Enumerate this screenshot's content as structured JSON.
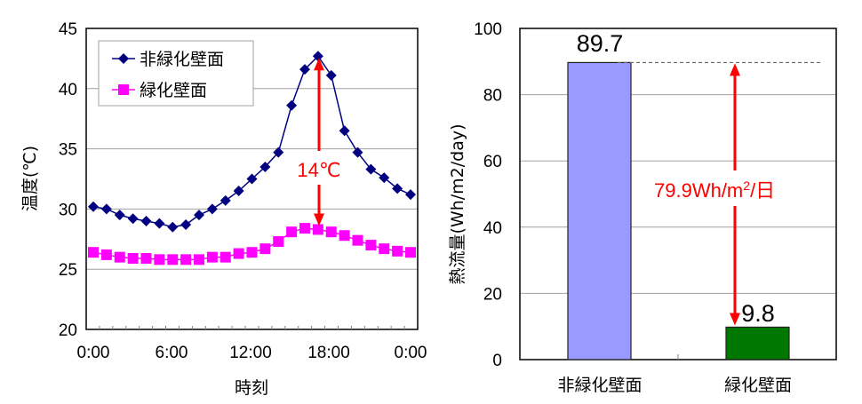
{
  "chart_data": [
    {
      "type": "line",
      "title": "",
      "xlabel": "時刻",
      "ylabel": "温度(℃)",
      "ylim": [
        20,
        45
      ],
      "yticks": [
        20,
        25,
        30,
        35,
        40,
        45
      ],
      "xtick_labels": [
        "0:00",
        "6:00",
        "12:00",
        "18:00",
        "0:00"
      ],
      "grid": "horizontal",
      "legend_position": "upper-left",
      "x": [
        "0:00",
        "1:00",
        "2:00",
        "3:00",
        "4:00",
        "5:00",
        "6:00",
        "7:00",
        "8:00",
        "9:00",
        "10:00",
        "11:00",
        "12:00",
        "13:00",
        "14:00",
        "15:00",
        "16:00",
        "17:00",
        "18:00",
        "19:00",
        "20:00",
        "21:00",
        "22:00",
        "23:00",
        "0:00"
      ],
      "series": [
        {
          "name": "非緑化壁面",
          "color": "#000080",
          "marker": "diamond",
          "values": [
            30.2,
            30.0,
            29.5,
            29.2,
            29.0,
            28.8,
            28.5,
            28.7,
            29.5,
            30.0,
            30.7,
            31.5,
            32.5,
            33.5,
            34.7,
            38.6,
            41.6,
            42.7,
            41.1,
            36.5,
            34.7,
            33.3,
            32.6,
            31.7,
            31.2
          ]
        },
        {
          "name": "緑化壁面",
          "color": "#ff00ff",
          "marker": "square",
          "values": [
            26.4,
            26.2,
            26.0,
            25.9,
            25.9,
            25.8,
            25.8,
            25.8,
            25.8,
            26.0,
            26.0,
            26.3,
            26.4,
            26.7,
            27.3,
            28.1,
            28.4,
            28.3,
            28.1,
            27.8,
            27.4,
            27.0,
            26.7,
            26.5,
            26.4
          ]
        }
      ],
      "annotations": [
        {
          "text": "14℃",
          "color": "#ff0000",
          "type": "double-arrow",
          "from": 42.7,
          "to": 28.3,
          "x_index": 17
        }
      ]
    },
    {
      "type": "bar",
      "title": "",
      "xlabel": "",
      "ylabel": "熱流量(Wh/m2/day)",
      "ylim": [
        0,
        100
      ],
      "yticks": [
        0,
        20,
        40,
        60,
        80,
        100
      ],
      "grid": "horizontal",
      "categories": [
        "非緑化壁面",
        "緑化壁面"
      ],
      "values": [
        89.7,
        9.8
      ],
      "value_labels": [
        "89.7",
        "9.8"
      ],
      "colors": [
        "#9999ff",
        "#007700"
      ],
      "annotations": [
        {
          "text": "79.9Wh/m²/日",
          "color": "#ff0000",
          "type": "double-arrow",
          "from": 89.7,
          "to": 9.8
        },
        {
          "type": "dashed-line",
          "y": 89.7,
          "color": "#666666"
        }
      ]
    }
  ],
  "left": {
    "y_title": "温度(℃)",
    "x_title": "時刻",
    "legend": [
      "非緑化壁面",
      "緑化壁面"
    ],
    "annotation": "14℃"
  },
  "right": {
    "y_title": "熱流量(Wh/m2/day)",
    "annotation_main": "79.9Wh/m",
    "annotation_sup": "2",
    "annotation_tail": "/日",
    "bar1_label": "89.7",
    "bar2_label": "9.8",
    "cat1": "非緑化壁面",
    "cat2": "緑化壁面"
  }
}
